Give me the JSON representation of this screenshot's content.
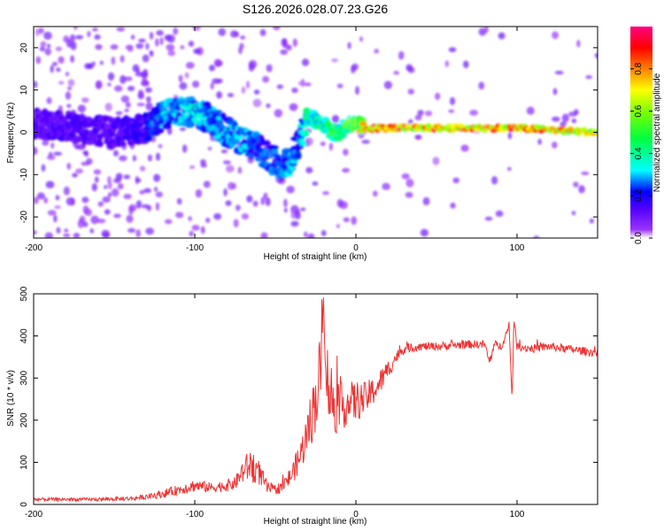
{
  "title": "S126.2026.028.07.23.G26",
  "colors": {
    "line": "#ee3333",
    "axis": "#000000",
    "background": "#ffffff"
  },
  "chart_data": [
    {
      "type": "heatmap",
      "name": "spectrogram",
      "xlabel": "Height of straight line (km)",
      "ylabel": "Frequency (Hz)",
      "xlim": [
        -200,
        150
      ],
      "ylim": [
        -25,
        25
      ],
      "xticks": [
        -200,
        -100,
        0,
        100
      ],
      "xtick_labels": [
        "-200",
        "-100",
        "0",
        "100"
      ],
      "yticks": [
        -20,
        -10,
        0,
        10,
        20
      ],
      "ytick_labels": [
        "-20",
        "-10",
        "0",
        "10",
        "20"
      ],
      "colorbar": {
        "label": "Normalized spectral amplitude",
        "range": [
          0,
          1
        ],
        "ticks": [
          0.0,
          0.2,
          0.4,
          0.6,
          0.8
        ],
        "tick_labels": [
          "0.0",
          "0.2",
          "0.4",
          "0.6",
          "0.8"
        ],
        "colormap": [
          "#ffffff",
          "#7a00ff",
          "#0000ff",
          "#00ffff",
          "#00ff00",
          "#ffff00",
          "#ff8000",
          "#ff0000",
          "#ff0080"
        ]
      },
      "ridge": {
        "x": [
          -200,
          -170,
          -150,
          -130,
          -120,
          -110,
          -100,
          -90,
          -80,
          -70,
          -60,
          -50,
          -45,
          -40,
          -35,
          -30,
          -25,
          -20,
          -15,
          -10,
          -5,
          0,
          5,
          10,
          50,
          100,
          150
        ],
        "y": [
          2,
          1,
          0,
          1,
          4,
          5,
          5,
          3,
          0,
          -2,
          -4,
          -7,
          -8,
          -6,
          -2,
          3,
          3,
          2,
          0,
          0,
          2,
          2,
          1,
          1,
          1,
          1,
          0
        ],
        "amplitude": [
          0.15,
          0.15,
          0.15,
          0.2,
          0.3,
          0.3,
          0.35,
          0.3,
          0.3,
          0.3,
          0.25,
          0.25,
          0.25,
          0.3,
          0.25,
          0.4,
          0.4,
          0.45,
          0.5,
          0.45,
          0.55,
          0.6,
          0.8,
          0.85,
          0.85,
          0.85,
          0.75
        ]
      }
    },
    {
      "type": "line",
      "name": "snr",
      "xlabel": "Height of straight line (km)",
      "ylabel": "SNR (10 * v/v)",
      "xlim": [
        -200,
        150
      ],
      "ylim": [
        0,
        500
      ],
      "xticks": [
        -200,
        -100,
        0,
        100
      ],
      "xtick_labels": [
        "-200",
        "-100",
        "0",
        "100"
      ],
      "yticks": [
        0,
        100,
        200,
        300,
        400,
        500
      ],
      "ytick_labels": [
        "0",
        "100",
        "200",
        "300",
        "400",
        "500"
      ],
      "series": [
        {
          "name": "SNR",
          "x": [
            -200,
            -180,
            -160,
            -140,
            -130,
            -120,
            -110,
            -100,
            -90,
            -80,
            -75,
            -70,
            -65,
            -60,
            -55,
            -50,
            -45,
            -40,
            -35,
            -30,
            -25,
            -22,
            -20,
            -18,
            -15,
            -10,
            -5,
            0,
            5,
            10,
            15,
            20,
            25,
            30,
            40,
            50,
            60,
            70,
            80,
            83,
            86,
            90,
            95,
            97,
            98,
            100,
            110,
            120,
            130,
            140,
            150
          ],
          "y": [
            12,
            12,
            12,
            14,
            18,
            25,
            35,
            45,
            40,
            45,
            50,
            80,
            95,
            75,
            40,
            35,
            45,
            70,
            110,
            170,
            250,
            320,
            480,
            300,
            250,
            230,
            240,
            245,
            250,
            265,
            290,
            320,
            350,
            370,
            375,
            375,
            378,
            380,
            380,
            335,
            380,
            375,
            420,
            250,
            440,
            375,
            370,
            375,
            370,
            365,
            360
          ],
          "amplitude_noise": [
            4,
            4,
            4,
            5,
            6,
            10,
            12,
            15,
            12,
            15,
            15,
            30,
            40,
            30,
            15,
            12,
            15,
            25,
            35,
            55,
            80,
            90,
            30,
            90,
            90,
            60,
            50,
            50,
            40,
            35,
            30,
            25,
            15,
            12,
            10,
            10,
            10,
            10,
            10,
            10,
            10,
            10,
            12,
            10,
            12,
            10,
            10,
            10,
            10,
            10,
            10
          ]
        }
      ]
    }
  ]
}
